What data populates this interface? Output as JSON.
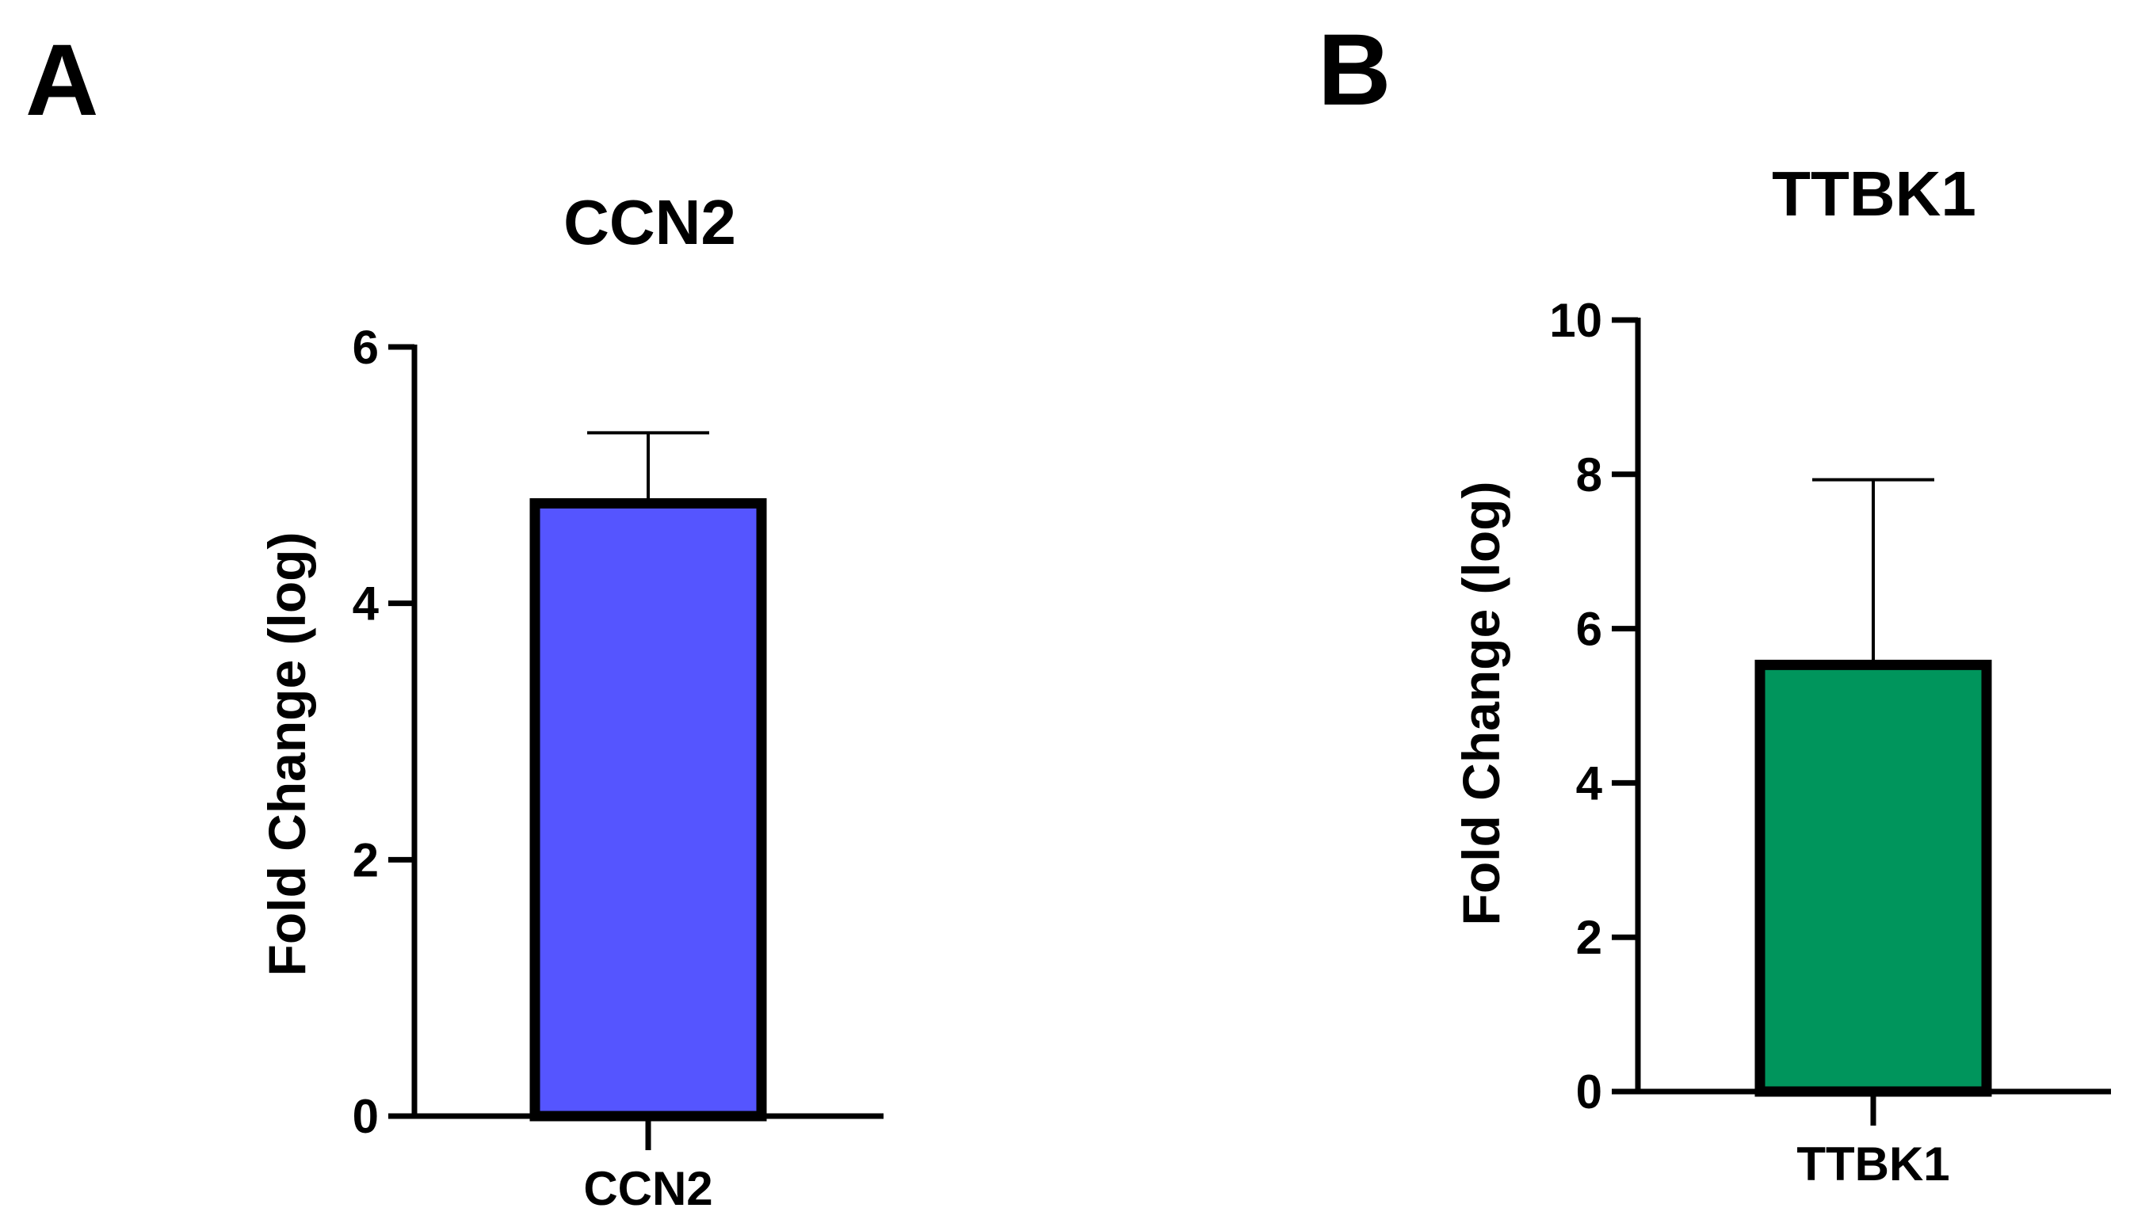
{
  "chart_data": [
    {
      "type": "bar",
      "panel": "A",
      "title": "CCN2",
      "ylabel": "Fold Change (log)",
      "xlabel": "",
      "categories": [
        "CCN2"
      ],
      "values": [
        4.78
      ],
      "error_upper": [
        5.33
      ],
      "ylim": [
        0,
        6
      ],
      "yticks": [
        0,
        2,
        4,
        6
      ],
      "bar_color": "#5555FF",
      "grid": false,
      "legend": "none"
    },
    {
      "type": "bar",
      "panel": "B",
      "title": "TTBK1",
      "ylabel": "Fold Change (log)",
      "xlabel": "",
      "categories": [
        "TTBK1"
      ],
      "values": [
        5.53
      ],
      "error_upper": [
        7.93
      ],
      "ylim": [
        0,
        10
      ],
      "yticks": [
        0,
        2,
        4,
        6,
        8,
        10
      ],
      "bar_color": "#00955C",
      "grid": false,
      "legend": "none"
    }
  ]
}
